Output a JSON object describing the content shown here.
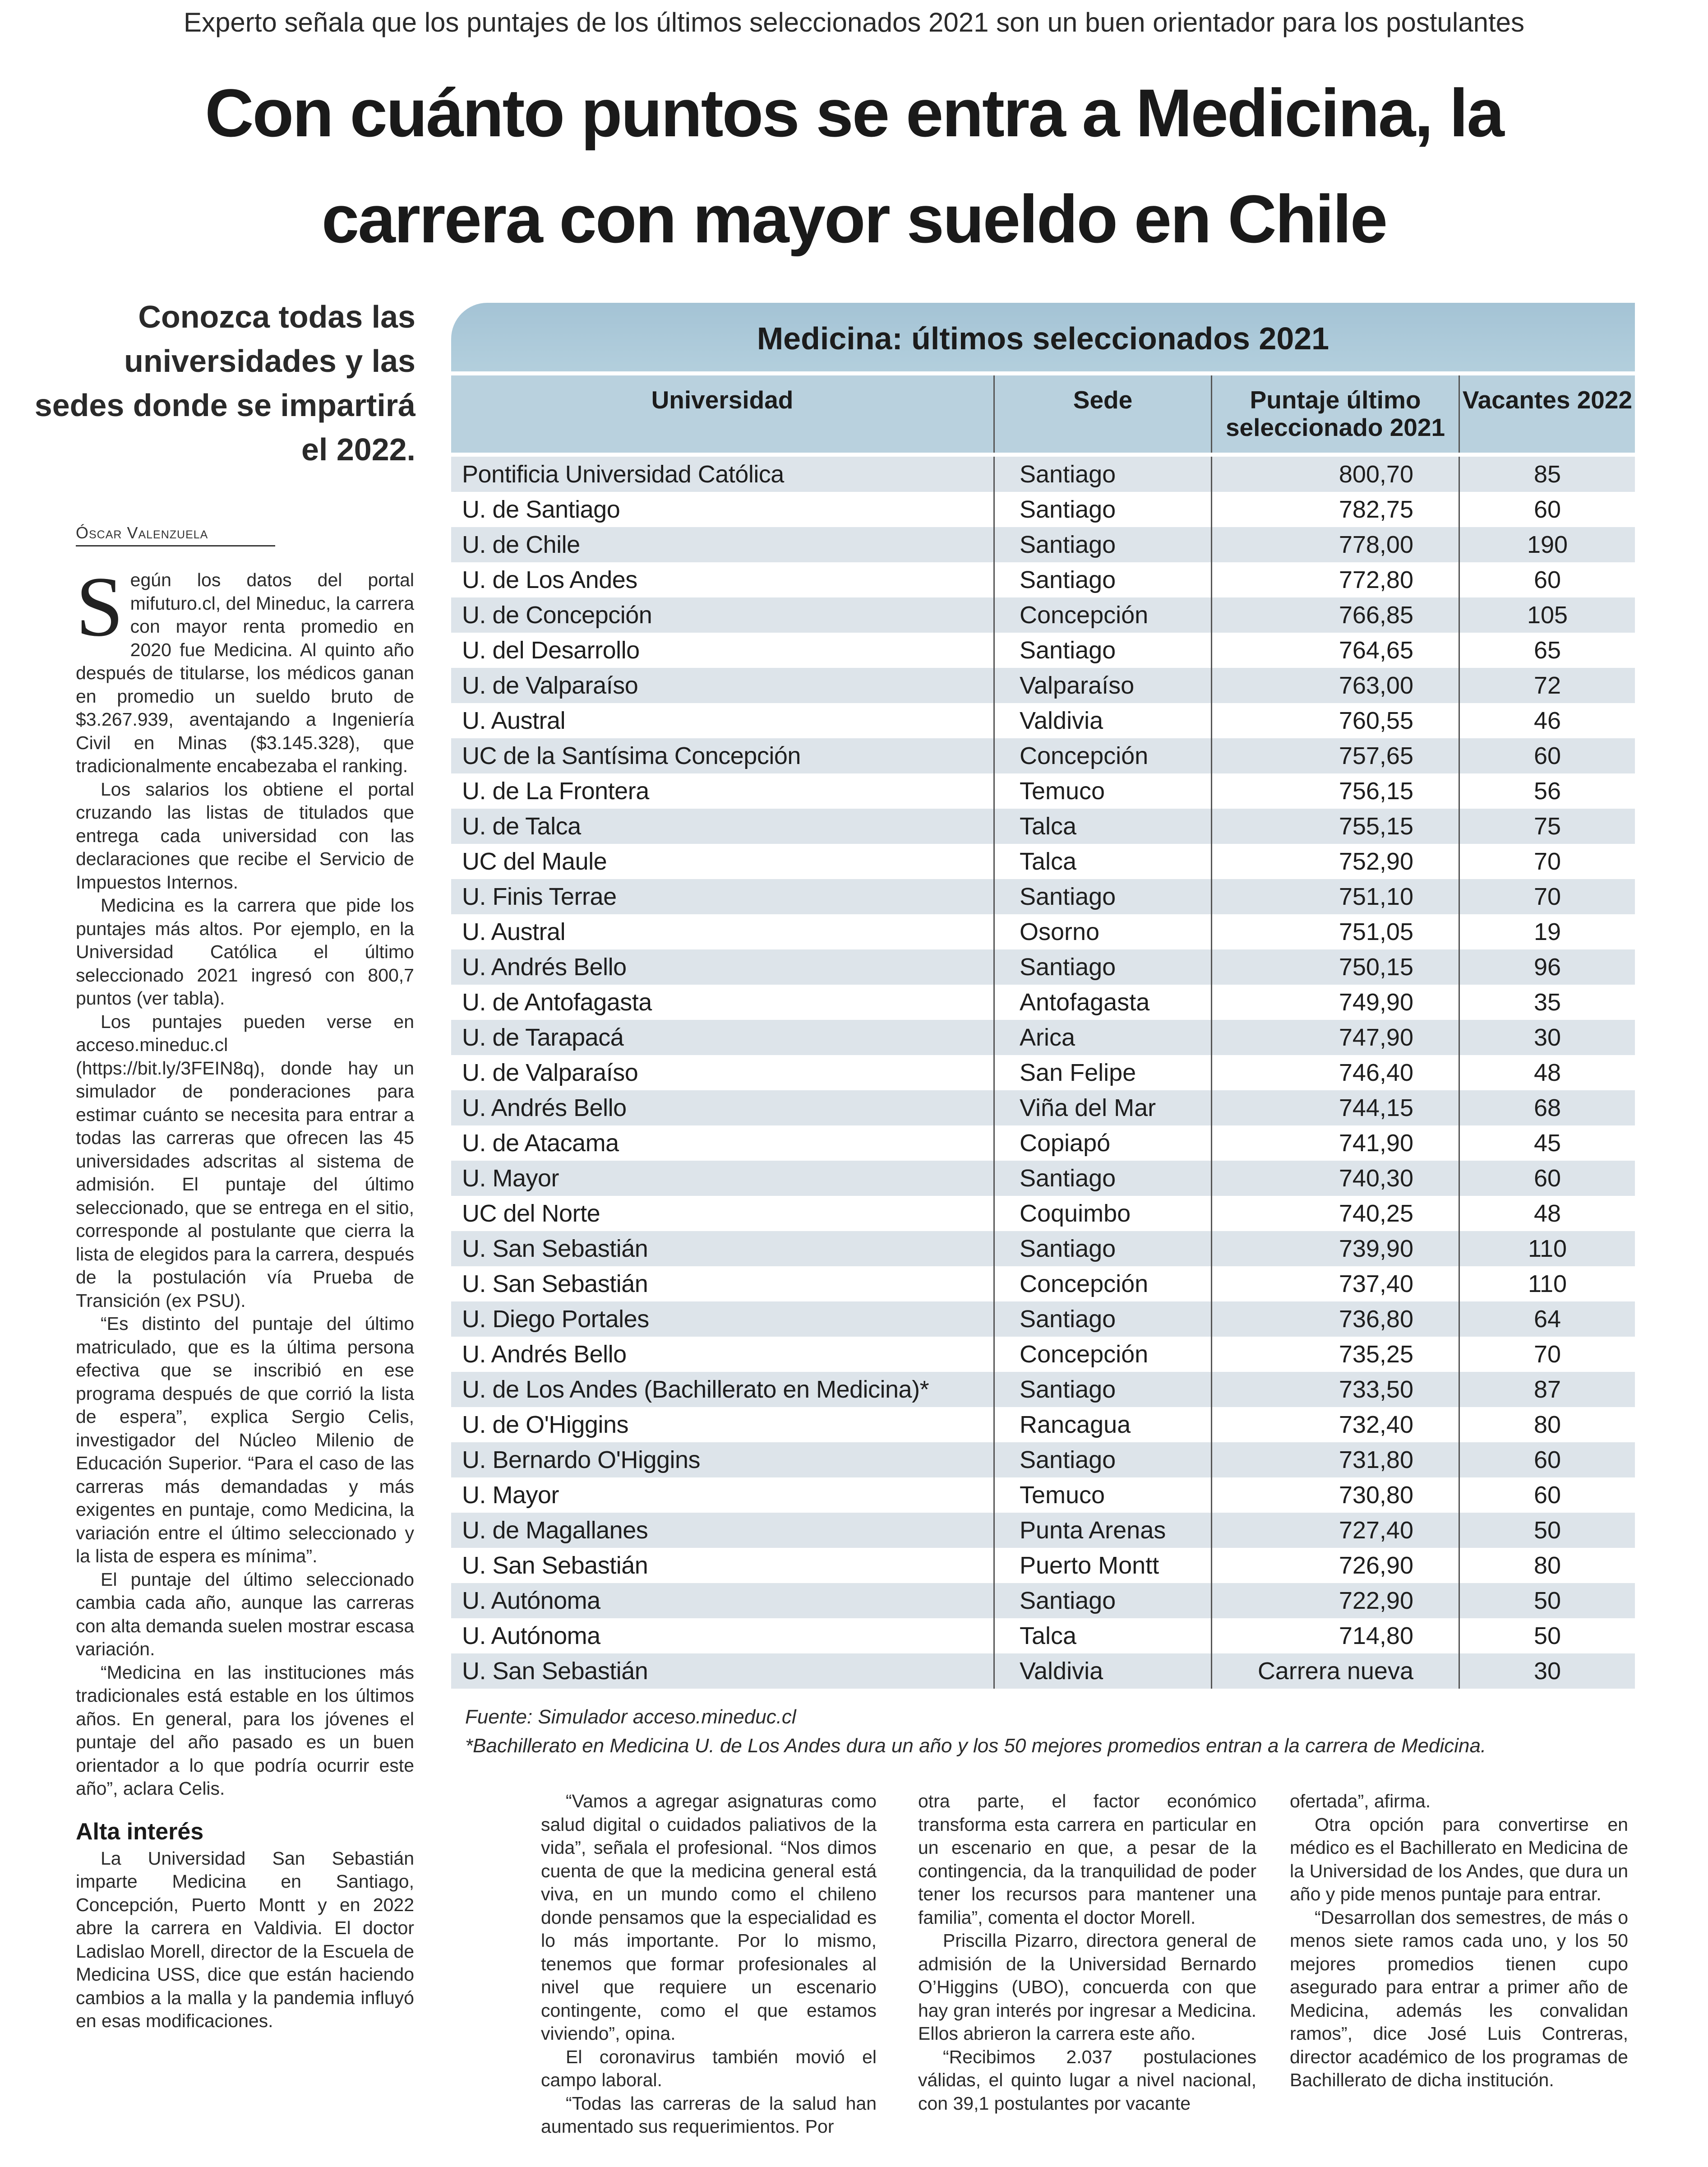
{
  "kicker": "Experto señala que los puntajes de los últimos seleccionados 2021 son un buen orientador para los postulantes",
  "headline": {
    "line1": "Con cuánto puntos se entra a Medicina, la",
    "line2": "carrera con mayor sueldo en Chile"
  },
  "deck": "Conozca todas las universidades y las sedes donde se impartirá el 2022.",
  "byline": "Óscar Valenzuela",
  "left_column": {
    "dropcap": "S",
    "paragraphs": [
      "egún los datos del portal mifuturo.cl, del Mineduc, la carrera con mayor renta promedio en 2020 fue Medicina. Al quinto año después de titularse, los médicos ganan en promedio un sueldo bruto de $3.267.939, aventajando a Ingeniería Civil en Minas ($3.145.328), que tradicionalmente encabezaba el ranking.",
      "Los salarios los obtiene el portal cruzando las listas de titulados que entrega cada universidad con las declaraciones que recibe el Servicio de Impuestos Internos.",
      "Medicina es la carrera que pide los puntajes más altos. Por ejemplo, en la Universidad Católica el último seleccionado 2021 ingresó con 800,7 puntos (ver tabla).",
      "Los puntajes pueden verse en acceso.mineduc.cl (https://bit.ly/3FEIN8q), donde hay un simulador de ponderaciones para estimar cuánto se necesita para entrar a todas las carreras que ofrecen las 45 universidades adscritas al sistema de admisión. El puntaje del último seleccionado, que se entrega en el sitio, corresponde al postulante que cierra la lista de elegidos para la carrera, después de la postulación vía Prueba de Transición (ex PSU).",
      "“Es distinto del puntaje del último matriculado, que es la última persona efectiva que se inscribió en ese programa después de que corrió la lista de espera”, explica Sergio Celis, investigador del Núcleo Milenio de Educación Superior. “Para el caso de las carreras más demandadas y más exigentes en puntaje, como Medicina, la variación entre el último seleccionado y la lista de espera es mínima”.",
      "El puntaje del último seleccionado cambia cada año, aunque las carreras con alta demanda suelen mostrar escasa variación.",
      "“Medicina en las instituciones más tradicionales está estable en los últimos años. En general, para los jóvenes el puntaje del año pasado es un buen orientador a lo que podría ocurrir este año”, aclara Celis."
    ],
    "subhead": "Alta interés",
    "after_subhead": "La Universidad San Sebastián imparte Medicina en Santiago, Concepción, Puerto Montt y en 2022 abre la carrera en Valdivia. El doctor Ladislao Morell, director de la Escuela de Medicina USS, dice que están haciendo cambios a la malla y la pandemia influyó en esas modificaciones."
  },
  "table": {
    "title": "Medicina: últimos seleccionados 2021",
    "headers": [
      "Universidad",
      "Sede",
      "Puntaje último seleccionado 2021",
      "Vacantes 2022"
    ],
    "rows": [
      [
        "Pontificia Universidad Católica",
        "Santiago",
        "800,70",
        "85"
      ],
      [
        "U. de Santiago",
        "Santiago",
        "782,75",
        "60"
      ],
      [
        "U. de Chile",
        "Santiago",
        "778,00",
        "190"
      ],
      [
        "U. de Los Andes",
        "Santiago",
        "772,80",
        "60"
      ],
      [
        "U. de Concepción",
        "Concepción",
        "766,85",
        "105"
      ],
      [
        "U. del Desarrollo",
        "Santiago",
        "764,65",
        "65"
      ],
      [
        "U. de Valparaíso",
        "Valparaíso",
        "763,00",
        "72"
      ],
      [
        "U. Austral",
        "Valdivia",
        "760,55",
        "46"
      ],
      [
        "UC de la Santísima Concepción",
        "Concepción",
        "757,65",
        "60"
      ],
      [
        "U. de La Frontera",
        "Temuco",
        "756,15",
        "56"
      ],
      [
        "U. de Talca",
        "Talca",
        "755,15",
        "75"
      ],
      [
        "UC del Maule",
        "Talca",
        "752,90",
        "70"
      ],
      [
        "U. Finis Terrae",
        "Santiago",
        "751,10",
        "70"
      ],
      [
        "U. Austral",
        "Osorno",
        "751,05",
        "19"
      ],
      [
        "U. Andrés Bello",
        "Santiago",
        "750,15",
        "96"
      ],
      [
        "U. de Antofagasta",
        "Antofagasta",
        "749,90",
        "35"
      ],
      [
        "U. de Tarapacá",
        "Arica",
        "747,90",
        "30"
      ],
      [
        "U. de Valparaíso",
        "San Felipe",
        "746,40",
        "48"
      ],
      [
        "U. Andrés Bello",
        "Viña del Mar",
        "744,15",
        "68"
      ],
      [
        "U. de Atacama",
        "Copiapó",
        "741,90",
        "45"
      ],
      [
        "U. Mayor",
        "Santiago",
        "740,30",
        "60"
      ],
      [
        "UC del Norte",
        "Coquimbo",
        "740,25",
        "48"
      ],
      [
        "U. San Sebastián",
        "Santiago",
        "739,90",
        "110"
      ],
      [
        "U. San Sebastián",
        "Concepción",
        "737,40",
        "110"
      ],
      [
        "U. Diego Portales",
        "Santiago",
        "736,80",
        "64"
      ],
      [
        "U. Andrés Bello",
        "Concepción",
        "735,25",
        "70"
      ],
      [
        "U. de Los Andes (Bachillerato en Medicina)*",
        "Santiago",
        "733,50",
        "87"
      ],
      [
        "U. de O'Higgins",
        "Rancagua",
        "732,40",
        "80"
      ],
      [
        "U. Bernardo O'Higgins",
        "Santiago",
        "731,80",
        "60"
      ],
      [
        "U. Mayor",
        "Temuco",
        "730,80",
        "60"
      ],
      [
        "U. de Magallanes",
        "Punta Arenas",
        "727,40",
        "50"
      ],
      [
        "U. San Sebastián",
        "Puerto Montt",
        "726,90",
        "80"
      ],
      [
        "U. Autónoma",
        "Santiago",
        "722,90",
        "50"
      ],
      [
        "U. Autónoma",
        "Talca",
        "714,80",
        "50"
      ],
      [
        "U. San Sebastián",
        "Valdivia",
        "Carrera nueva",
        "30"
      ]
    ],
    "source": "Fuente: Simulador acceso.mineduc.cl",
    "footnote": "*Bachillerato en Medicina U. de Los Andes dura un año y los 50 mejores promedios entran a la carrera de Medicina.",
    "colors": {
      "title_band": "#a9c8d9",
      "header_row": "#b9d1de",
      "stripe": "#dde4ea"
    }
  },
  "bottom_columns": [
    [
      "“Vamos a agregar asignaturas como salud digital o cuidados paliativos de la vida”, señala el profesional. “Nos dimos cuenta de que la medicina general está viva, en un mundo como el chileno donde pensamos que la especialidad es lo más importante. Por lo mismo, tenemos que formar profesionales al nivel que requiere un escenario contingente, como el que estamos viviendo”, opina.",
      "El coronavirus también movió el campo laboral.",
      "“Todas las carreras de la salud han aumentado sus requerimientos. Por"
    ],
    [
      "otra parte, el factor económico transforma esta carrera en particular en un escenario en que, a pesar de la contingencia, da la tranquilidad de poder tener los recursos para mantener una familia”, comenta el doctor Morell.",
      "Priscilla Pizarro, directora general de admisión de la Universidad Bernardo O’Higgins (UBO), concuerda con que hay gran interés por ingresar a Medicina. Ellos abrieron la carrera este año.",
      "“Recibimos 2.037 postulaciones válidas, el quinto lugar a nivel nacional, con 39,1 postulantes por vacante"
    ],
    [
      "ofertada”, afirma.",
      "Otra opción para convertirse en médico es el Bachillerato en Medicina de la Universidad de los Andes, que dura un año y pide menos puntaje para entrar.",
      "“Desarrollan dos semestres, de más o menos siete ramos cada uno, y los 50 mejores promedios tienen cupo asegurado para entrar a primer año de Medicina, además les convalidan ramos”, dice José Luis Contreras, director académico de los programas de Bachillerato de dicha institución."
    ]
  ]
}
